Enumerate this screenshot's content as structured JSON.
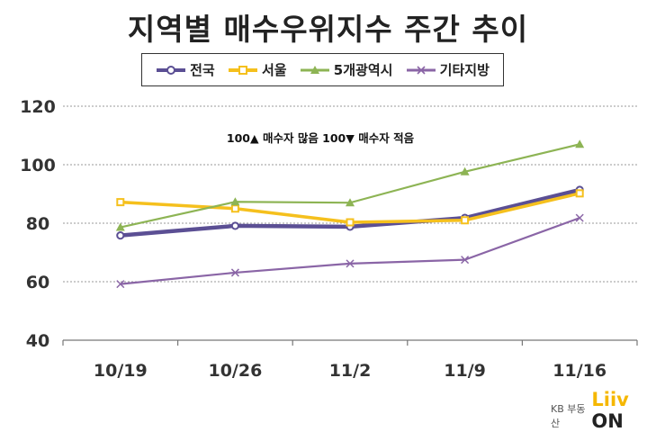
{
  "title": "지역별 매수우위지수 주간 추이",
  "annotation": "100▲ 매수자 많음 100▼ 매수자 적음",
  "brand": {
    "kb_label": "KB 부동산",
    "liiv": "Liiv",
    "on": "ON"
  },
  "chart_data": {
    "type": "line",
    "title": "지역별 매수우위지수 주간 추이",
    "categories": [
      "10/19",
      "10/26",
      "11/2",
      "11/9",
      "11/16"
    ],
    "ylim": [
      40,
      120
    ],
    "yticks": [
      40,
      60,
      80,
      100,
      120
    ],
    "grid": true,
    "legend_position": "top",
    "series": [
      {
        "name": "전국",
        "color": "#5b4f94",
        "marker": "circle",
        "values": [
          75.8,
          79.1,
          78.8,
          81.8,
          91.4
        ]
      },
      {
        "name": "서울",
        "color": "#f5c01d",
        "marker": "square",
        "values": [
          87.2,
          85.0,
          80.3,
          81.0,
          90.2
        ]
      },
      {
        "name": "5개광역시",
        "color": "#8db454",
        "marker": "triangle",
        "values": [
          78.6,
          87.3,
          87.0,
          97.6,
          107.0
        ]
      },
      {
        "name": "기타지방",
        "color": "#8a65a6",
        "marker": "x",
        "values": [
          59.2,
          63.1,
          66.2,
          67.5,
          81.8
        ]
      }
    ]
  }
}
